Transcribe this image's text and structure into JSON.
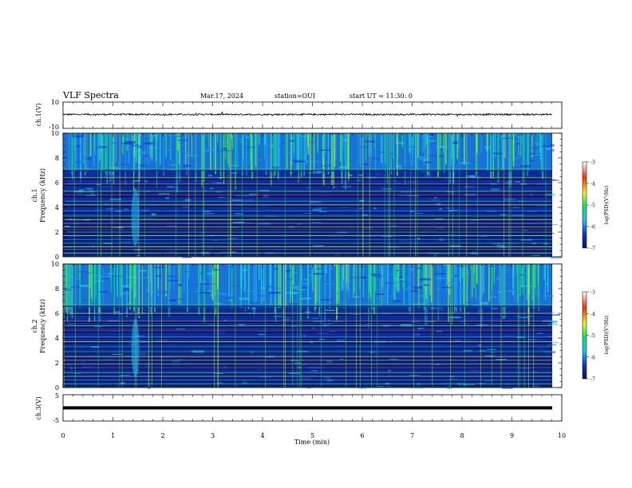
{
  "header": {
    "title": "VLF Spectra",
    "date": "Mar.17, 2024",
    "station": "station=OUI",
    "start": "start UT = 11:30: 0"
  },
  "chart_data": [
    {
      "type": "line",
      "panel": "ch1-waveform",
      "ylabel": "ch.1(V)",
      "ylim": [
        -10,
        10
      ],
      "yticks": [
        "10",
        "-10"
      ],
      "x_range": [
        0,
        10
      ],
      "series": [
        {
          "values": "noise-band about +0.6 V, amplitude ~ +/-0.6 V, data ends at 9.8 min"
        }
      ],
      "line_color": "#000000"
    },
    {
      "type": "heatmap",
      "panel": "ch1-spectrogram",
      "ylabel": "ch.1\nFrequency (kHz)",
      "ylim": [
        0,
        10
      ],
      "yticks": [
        "0",
        "2",
        "4",
        "6",
        "8",
        "10"
      ],
      "xlim": [
        0,
        9.8
      ],
      "colorbar": {
        "label": "log(PSD)(V²/Hz)",
        "range": [
          -7,
          -3
        ],
        "ticks": [
          "-3",
          "-4",
          "-5",
          "-6",
          "-7"
        ]
      },
      "background_color": "#0a2e9a",
      "broadband_above_khz": 7,
      "bands_khz": [
        7.1,
        6.4,
        5.9,
        5.3,
        5.0,
        4.5,
        4.2,
        3.7,
        3.3,
        3.0,
        2.7,
        2.4,
        2.2,
        2.0,
        1.7,
        1.4,
        1.1,
        0.8,
        0.6,
        0.3
      ]
    },
    {
      "type": "heatmap",
      "panel": "ch2-spectrogram",
      "ylabel": "ch.2\nFrequency (kHz)",
      "ylim": [
        0,
        10
      ],
      "yticks": [
        "0",
        "2",
        "4",
        "6",
        "8",
        "10"
      ],
      "xlim": [
        0,
        9.8
      ],
      "colorbar": {
        "label": "log(PSD)(V²/Hz)",
        "range": [
          -7,
          -3
        ],
        "ticks": [
          "-3",
          "-4",
          "-5",
          "-6",
          "-7"
        ]
      },
      "background_color": "#0a2e9a",
      "broadband_above_khz": 6.5,
      "bands_khz": [
        6.7,
        6.0,
        5.4,
        5.0,
        4.6,
        4.1,
        3.7,
        3.3,
        2.9,
        2.5,
        2.2,
        1.9,
        1.6,
        1.2,
        0.9,
        0.6,
        0.3
      ]
    },
    {
      "type": "line",
      "panel": "ch3-waveform",
      "ylabel": "ch.3(V)",
      "ylim": [
        -5,
        5
      ],
      "yticks": [
        "5",
        "-5"
      ],
      "x_range": [
        0,
        10
      ],
      "series": [
        {
          "values": "flat thick trace at about -1 V"
        }
      ],
      "line_color": "#000000"
    }
  ],
  "xaxis": {
    "label": "Time (min)",
    "ticks": [
      "0",
      "1",
      "2",
      "3",
      "4",
      "5",
      "6",
      "7",
      "8",
      "9",
      "10"
    ],
    "xlim": [
      0,
      10
    ]
  }
}
